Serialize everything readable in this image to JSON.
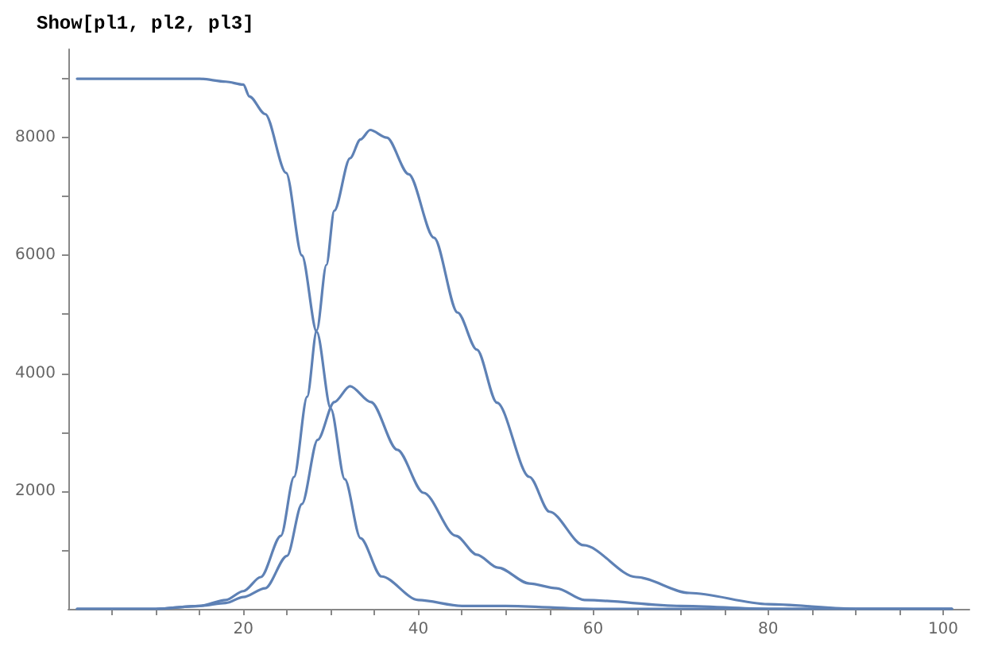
{
  "chart_data": {
    "type": "line",
    "title": "Show[pl1, pl2, pl3]",
    "xlim": [
      0,
      103
    ],
    "ylim": [
      0,
      9500
    ],
    "xticks": [
      {
        "value": 5,
        "label": null
      },
      {
        "value": 10,
        "label": null
      },
      {
        "value": 15,
        "label": null
      },
      20,
      {
        "value": 25,
        "label": null
      },
      {
        "value": 30,
        "label": null
      },
      {
        "value": 35,
        "label": null
      },
      40,
      {
        "value": 45,
        "label": null
      },
      {
        "value": 50,
        "label": null
      },
      {
        "value": 55,
        "label": null
      },
      60,
      {
        "value": 65,
        "label": null
      },
      {
        "value": 70,
        "label": null
      },
      {
        "value": 75,
        "label": null
      },
      80,
      {
        "value": 85,
        "label": null
      },
      {
        "value": 90,
        "label": null
      },
      {
        "value": 95,
        "label": null
      },
      100
    ],
    "yticks": [
      {
        "value": 1000,
        "label": null
      },
      2000,
      {
        "value": 3000,
        "label": null
      },
      4000,
      {
        "value": 5000,
        "label": null
      },
      6000,
      {
        "value": 7000,
        "label": null
      },
      8000,
      {
        "value": 9000,
        "label": null
      }
    ],
    "grid": false,
    "marker": "none",
    "line_style": "solid",
    "series": [
      {
        "color": "#5e81b5",
        "x": [
          1,
          5,
          10,
          15,
          18,
          20,
          20.7,
          22.5,
          24.9,
          26.7,
          28.4,
          30,
          31.6,
          33.4,
          35.8,
          40,
          45,
          50,
          60,
          80,
          101
        ],
        "values": [
          9000,
          9000,
          9000,
          9000,
          8950,
          8900,
          8700,
          8400,
          7400,
          6000,
          4700,
          3400,
          2200,
          1200,
          550,
          150,
          50,
          50,
          0,
          0,
          0
        ]
      },
      {
        "color": "#5e81b5",
        "x": [
          1,
          5,
          10,
          15,
          18,
          20,
          22,
          24.3,
          25.8,
          27.3,
          28.4,
          29.5,
          30.4,
          32.2,
          33.4,
          34.5,
          36.4,
          38.9,
          41.8,
          44.5,
          46.7,
          49,
          52.7,
          55,
          58.9,
          64.9,
          71,
          80,
          90,
          101
        ],
        "values": [
          0,
          0,
          0,
          50,
          150,
          300,
          540,
          1240,
          2240,
          3600,
          4730,
          5840,
          6760,
          7650,
          7970,
          8130,
          8000,
          7380,
          6300,
          5030,
          4400,
          3500,
          2240,
          1650,
          1080,
          540,
          270,
          80,
          0,
          0
        ]
      },
      {
        "color": "#5e81b5",
        "x": [
          1,
          5,
          10,
          15,
          18,
          20,
          22.5,
          25,
          26.7,
          28.5,
          30.4,
          32.2,
          34.6,
          37.6,
          40.6,
          44.3,
          46.7,
          49.1,
          52.7,
          55.8,
          59,
          70,
          80,
          101
        ],
        "values": [
          0,
          0,
          0,
          50,
          100,
          200,
          350,
          900,
          1780,
          2870,
          3510,
          3780,
          3510,
          2700,
          1970,
          1240,
          920,
          700,
          430,
          350,
          150,
          50,
          0,
          0
        ]
      }
    ]
  }
}
